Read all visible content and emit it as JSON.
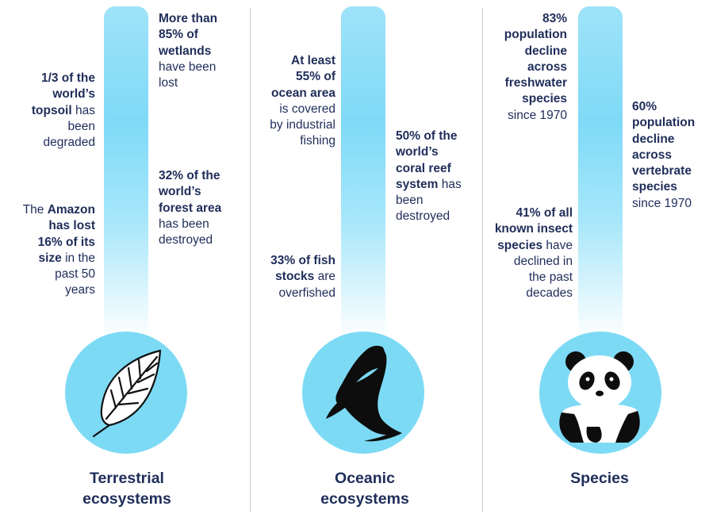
{
  "columns": [
    {
      "title_line1": "Terrestrial",
      "title_line2": "ecosystems",
      "icon": "leaf-icon",
      "facts": [
        {
          "id": "topsoil",
          "lines": [
            [
              "1/3 of the",
              true
            ],
            [
              "world’s",
              true
            ],
            [
              "topsoil",
              true,
              " has"
            ],
            [
              "been",
              false
            ],
            [
              "degraded",
              false
            ]
          ]
        },
        {
          "id": "amazon",
          "lines": [
            [
              "The ",
              false,
              "Amazon"
            ],
            [
              "has lost",
              true
            ],
            [
              "16% of its",
              true
            ],
            [
              "size",
              true,
              " in the"
            ],
            [
              "past 50",
              false
            ],
            [
              "years",
              false
            ]
          ]
        },
        {
          "id": "wetlands",
          "lines": [
            [
              "More than",
              true
            ],
            [
              "85% of",
              true
            ],
            [
              "wetlands",
              true
            ],
            [
              "have been",
              false
            ],
            [
              "lost",
              false
            ]
          ]
        },
        {
          "id": "forest",
          "lines": [
            [
              "32% of the",
              true
            ],
            [
              "world’s",
              true
            ],
            [
              "forest area",
              true
            ],
            [
              "has been",
              false
            ],
            [
              "destroyed",
              false
            ]
          ]
        }
      ]
    },
    {
      "title_line1": "Oceanic",
      "title_line2": "ecosystems",
      "icon": "fish-icon",
      "facts": [
        {
          "id": "ocean-area",
          "lines": [
            [
              "At least",
              true
            ],
            [
              "55% of",
              true
            ],
            [
              "ocean area",
              true
            ],
            [
              "is covered",
              false
            ],
            [
              "by industrial",
              false
            ],
            [
              "fishing",
              false
            ]
          ]
        },
        {
          "id": "fish-stocks",
          "lines": [
            [
              "33% of fish",
              true
            ],
            [
              "stocks",
              true,
              " are"
            ],
            [
              "overfished",
              false
            ]
          ]
        },
        {
          "id": "coral",
          "lines": [
            [
              "50% of the",
              true
            ],
            [
              "world’s",
              true
            ],
            [
              "coral reef",
              true
            ],
            [
              "system",
              true,
              " has"
            ],
            [
              "been",
              false
            ],
            [
              "destroyed",
              false
            ]
          ]
        }
      ]
    },
    {
      "title_line1": "Species",
      "title_line2": "",
      "icon": "panda-icon",
      "facts": [
        {
          "id": "freshwater",
          "lines": [
            [
              "83%",
              true
            ],
            [
              "population",
              true
            ],
            [
              "decline",
              true
            ],
            [
              "across",
              true
            ],
            [
              "freshwater",
              true
            ],
            [
              "species",
              true
            ],
            [
              "since 1970",
              false
            ]
          ]
        },
        {
          "id": "insects",
          "lines": [
            [
              "41% of all",
              true
            ],
            [
              "known insect",
              true
            ],
            [
              "species",
              true,
              " have"
            ],
            [
              "declined in",
              false
            ],
            [
              "the past",
              false
            ],
            [
              "decades",
              false
            ]
          ]
        },
        {
          "id": "vertebrate",
          "lines": [
            [
              "60%",
              true
            ],
            [
              "population",
              true
            ],
            [
              "decline",
              true
            ],
            [
              "across",
              true
            ],
            [
              "vertebrate",
              true
            ],
            [
              "species",
              true
            ],
            [
              "since 1970",
              false
            ]
          ]
        }
      ]
    }
  ],
  "colors": {
    "text": "#1f2d5a",
    "circle": "#7ddaf5",
    "tube_top": "#9ee3f8",
    "divider": "#c8c8c8"
  }
}
